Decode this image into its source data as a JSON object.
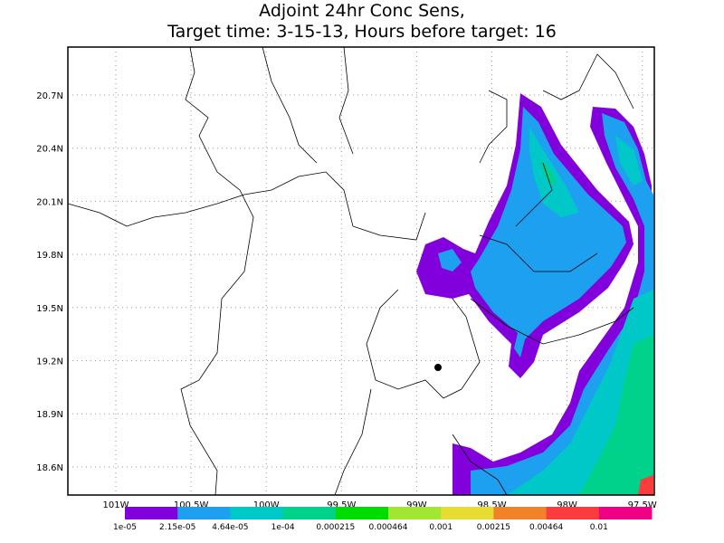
{
  "map": {
    "title": [
      "Adjoint 24hr Conc Sens,",
      "Target time: 3-15-13, Hours before target: 16"
    ],
    "lat_labels": [
      "20.7N",
      "20.4N",
      "20.1N",
      "19.8N",
      "19.5N",
      "19.2N",
      "18.9N",
      "18.6N"
    ],
    "lon_labels": [
      "101W",
      "100.5W",
      "100W",
      "99.5W",
      "99W",
      "98.5W",
      "98W",
      "97.5W"
    ],
    "legend": {
      "colors": [
        "#8200dc",
        "#1ea0f0",
        "#00c8c8",
        "#00d28c",
        "#00dc00",
        "#a0e632",
        "#e6dc32",
        "#f08228",
        "#fa3c3c",
        "#f00082"
      ],
      "labels": [
        "1e-05",
        "2.15e-05",
        "4.64e-05",
        "1e-04",
        "0.000215",
        "0.000464",
        "0.001",
        "0.00215",
        "0.00464",
        "0.01"
      ]
    }
  }
}
